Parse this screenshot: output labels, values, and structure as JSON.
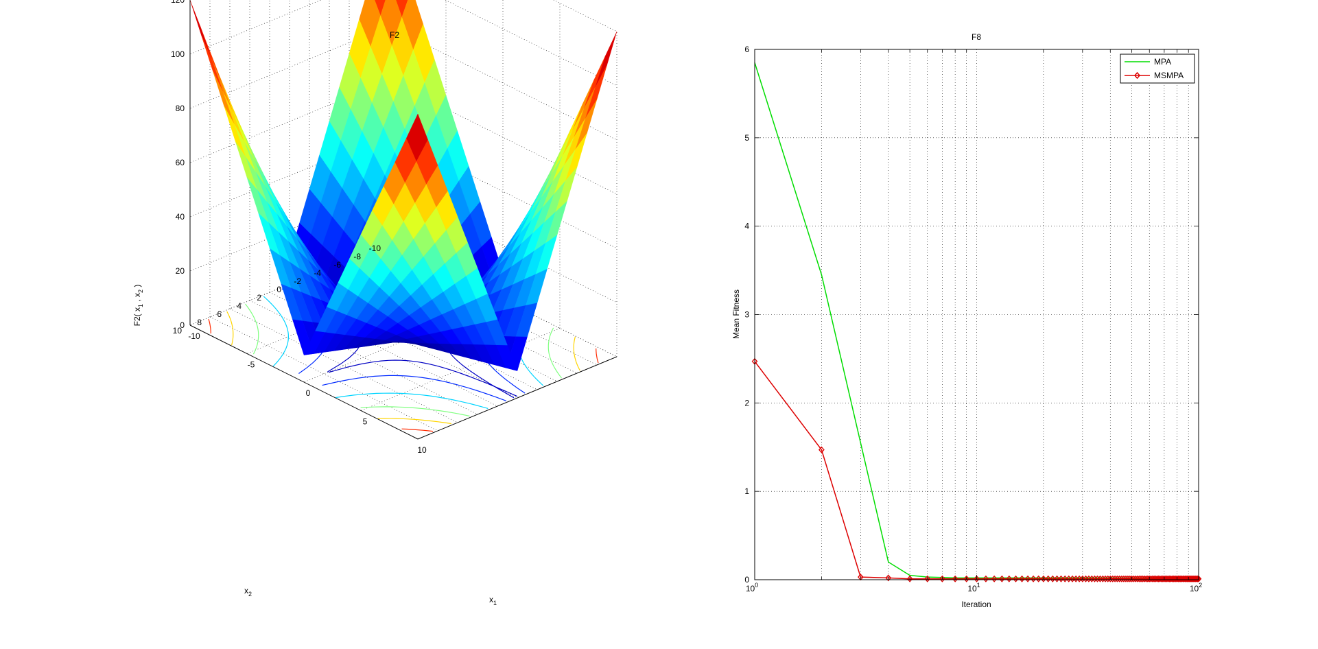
{
  "chart_data": [
    {
      "type": "surface3d",
      "title": "F2",
      "xlabel": "x",
      "xlabel_sub": "1",
      "ylabel": "x",
      "ylabel_sub": "2",
      "zlabel": "F2( x",
      "zlabel_sub1": "1",
      "zlabel_mid": " , x",
      "zlabel_sub2": "2",
      "zlabel_end": " )",
      "x_ticks": [
        "-10",
        "-5",
        "0",
        "5",
        "10"
      ],
      "y_ticks": [
        "-10",
        "-8",
        "-6",
        "-4",
        "-2",
        "0",
        "2",
        "4",
        "6",
        "8",
        "10"
      ],
      "z_ticks": [
        "0",
        "20",
        "40",
        "60",
        "80",
        "100",
        "120"
      ],
      "xlim": [
        -10,
        10
      ],
      "ylim": [
        -10,
        10
      ],
      "zlim": [
        0,
        120
      ],
      "function": "|x1| + |x2| + |x1*x2|",
      "grid": true,
      "colormap": "jet",
      "contour_on_floor": true
    },
    {
      "type": "line",
      "title": "F8",
      "xlabel": "Iteration",
      "ylabel": "Mean Fitness",
      "xscale": "log",
      "xlim": [
        1,
        100
      ],
      "ylim": [
        0,
        6
      ],
      "x_tick_bases": [
        "10",
        "10",
        "10"
      ],
      "x_tick_exps": [
        "0",
        "1",
        "2"
      ],
      "y_ticks": [
        "0",
        "1",
        "2",
        "3",
        "4",
        "5",
        "6"
      ],
      "grid": true,
      "legend_position": "top-right",
      "series": [
        {
          "name": "MPA",
          "color": "#00dd00",
          "marker": "none",
          "x": [
            1,
            2,
            3,
            4,
            5,
            6,
            7,
            8,
            9,
            10,
            100
          ],
          "y": [
            5.85,
            3.45,
            1.55,
            0.2,
            0.05,
            0.03,
            0.025,
            0.02,
            0.02,
            0.02,
            0.02
          ]
        },
        {
          "name": "MSMPA",
          "color": "#dd0000",
          "marker": "diamond",
          "x_range": [
            1,
            100
          ],
          "y_first": [
            2.47,
            1.47,
            0.03,
            0.02,
            0.01
          ],
          "y_rest": 0.01
        }
      ]
    }
  ]
}
